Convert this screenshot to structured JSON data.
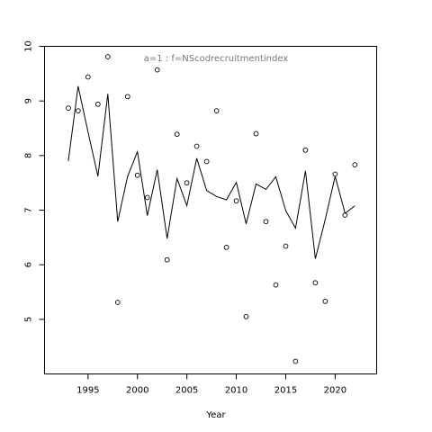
{
  "chart_data": {
    "type": "line",
    "title": "a=1  :  f=NScodrecruitmentindex",
    "xlabel": "Year",
    "ylabel": "",
    "xlim": [
      1990.6,
      2024.2
    ],
    "ylim": [
      4.0,
      10.0
    ],
    "grid": false,
    "x_ticks": [
      1995,
      2000,
      2005,
      2010,
      2015,
      2020
    ],
    "y_ticks": [
      5,
      6,
      7,
      8,
      9,
      10
    ],
    "series": [
      {
        "style": "points",
        "marker": "circle",
        "x": [
          1993,
          1994,
          1995,
          1996,
          1997,
          1998,
          1999,
          2000,
          2001,
          2002,
          2003,
          2004,
          2005,
          2006,
          2007,
          2008,
          2009,
          2010,
          2011,
          2012,
          2013,
          2014,
          2015,
          2016,
          2017,
          2018,
          2019,
          2020,
          2021,
          2022
        ],
        "values": [
          8.87,
          8.82,
          9.44,
          8.94,
          9.81,
          5.31,
          9.08,
          7.64,
          7.23,
          9.57,
          6.09,
          8.39,
          7.5,
          8.17,
          7.89,
          8.82,
          6.32,
          7.17,
          5.05,
          8.4,
          6.79,
          5.63,
          6.34,
          4.23,
          8.1,
          5.67,
          5.33,
          7.66,
          6.91,
          7.83
        ]
      },
      {
        "style": "line",
        "x": [
          1993,
          1994,
          1995,
          1996,
          1997,
          1998,
          1999,
          2000,
          2001,
          2002,
          2003,
          2004,
          2005,
          2006,
          2007,
          2008,
          2009,
          2010,
          2011,
          2012,
          2013,
          2014,
          2015,
          2016,
          2017,
          2018,
          2019,
          2020,
          2021,
          2022
        ],
        "values": [
          7.9,
          9.27,
          8.43,
          7.62,
          9.13,
          6.79,
          7.62,
          8.07,
          6.9,
          7.74,
          6.48,
          7.58,
          7.08,
          7.95,
          7.36,
          7.25,
          7.19,
          7.51,
          6.75,
          7.48,
          7.38,
          7.61,
          6.99,
          6.67,
          7.72,
          6.11,
          6.83,
          7.62,
          6.94,
          7.08
        ]
      }
    ]
  }
}
